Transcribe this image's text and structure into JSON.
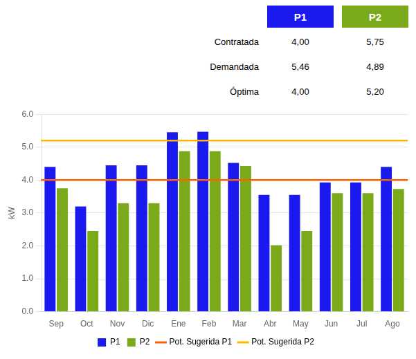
{
  "chart_data": {
    "type": "bar",
    "categories": [
      "Sep",
      "Oct",
      "Nov",
      "Dic",
      "Ene",
      "Feb",
      "Mar",
      "Abr",
      "May",
      "Jun",
      "Jul",
      "Ago"
    ],
    "series": [
      {
        "name": "P1",
        "color": "#1a1aee",
        "values": [
          4.4,
          3.2,
          4.45,
          4.45,
          5.45,
          5.47,
          4.52,
          3.55,
          3.55,
          3.93,
          3.93,
          4.4
        ]
      },
      {
        "name": "P2",
        "color": "#7aaa1a",
        "values": [
          3.75,
          2.45,
          3.3,
          3.3,
          4.88,
          4.88,
          4.43,
          2.02,
          2.45,
          3.6,
          3.6,
          3.73
        ]
      }
    ],
    "hlines": [
      {
        "name": "Pot. Sugerida P1",
        "value": 4.0,
        "color": "#ff6000"
      },
      {
        "name": "Pot. Sugerida P2",
        "value": 5.2,
        "color": "#ffb800"
      }
    ],
    "ylabel": "kW",
    "ylim": [
      0,
      6.0
    ],
    "yticks": [
      {
        "value": 0.0,
        "label": "0.0"
      },
      {
        "value": 1.0,
        "label": "1.0"
      },
      {
        "value": 2.0,
        "label": "2.0"
      },
      {
        "value": 3.0,
        "label": "3.0"
      },
      {
        "value": 4.0,
        "label": "4.0"
      },
      {
        "value": 5.0,
        "label": "5.0"
      },
      {
        "value": 6.0,
        "label": "6.0"
      }
    ],
    "grid": true,
    "legend": "bottom",
    "table": {
      "columns": [
        {
          "name": "P1",
          "color": "#1a1aee"
        },
        {
          "name": "P2",
          "color": "#7aaa1a"
        }
      ],
      "rows": [
        {
          "label": "Contratada",
          "values": [
            "4,00",
            "5,75"
          ]
        },
        {
          "label": "Demandada",
          "values": [
            "5,46",
            "4,89"
          ]
        },
        {
          "label": "Óptima",
          "values": [
            "4,00",
            "5,20"
          ]
        }
      ]
    }
  }
}
